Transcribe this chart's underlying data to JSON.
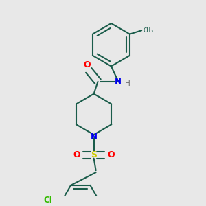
{
  "background_color": "#e8e8e8",
  "bond_color": "#1a5c4a",
  "atom_colors": {
    "O": "#ff0000",
    "N": "#0000ee",
    "S": "#cccc00",
    "Cl": "#33bb00",
    "H": "#666666",
    "C": "#1a5c4a"
  },
  "line_width": 1.5,
  "dbo": 0.018,
  "figsize": [
    3.0,
    3.0
  ],
  "dpi": 100
}
